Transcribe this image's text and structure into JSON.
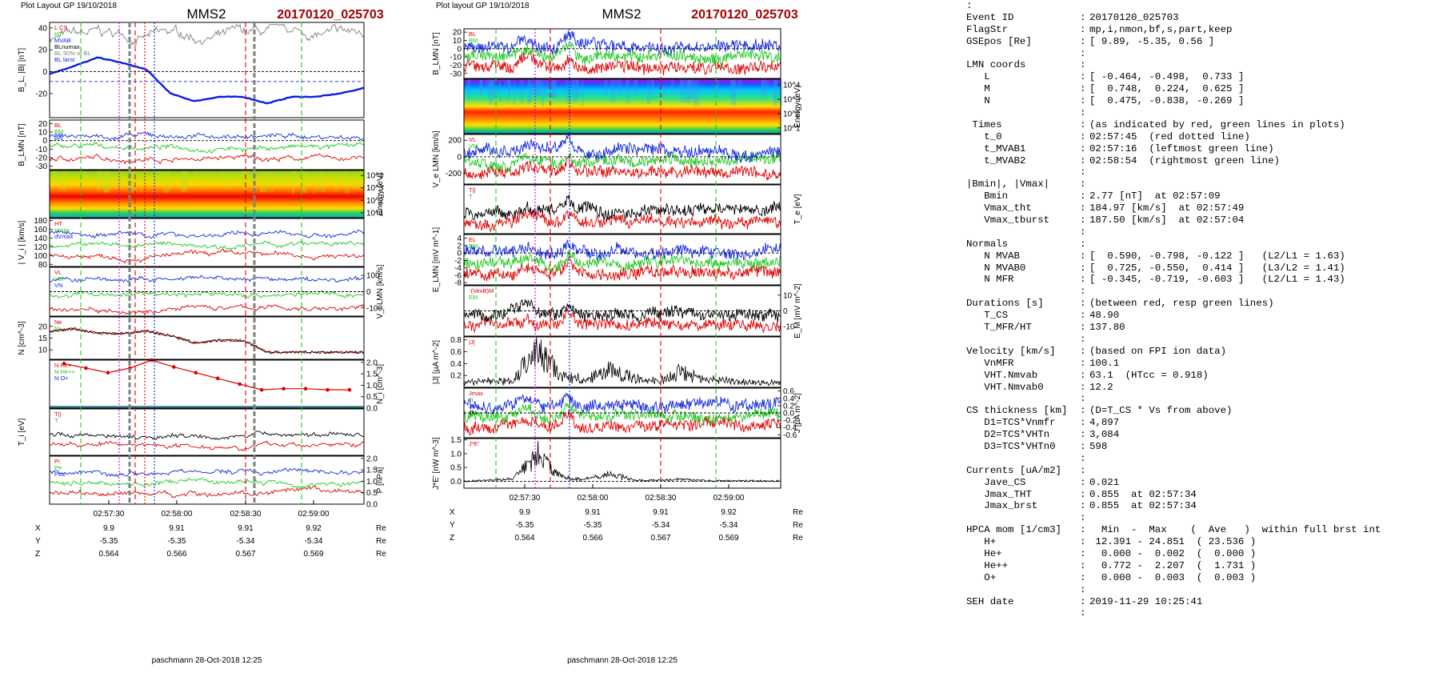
{
  "figures": [
    {
      "header": "Plot Layout GP 19/10/2018",
      "title": "MMS2",
      "event": "20170120_025703",
      "footer": "paschmann 28-Oct-2018 12:25",
      "time_ticks": [
        "02:57:30",
        "02:58:00",
        "02:58:30",
        "02:59:00"
      ],
      "position_rows": [
        {
          "label": "X",
          "values": [
            "9.9",
            "9.91",
            "9.91",
            "9.92"
          ],
          "unit": "Re"
        },
        {
          "label": "Y",
          "values": [
            "-5.35",
            "-5.35",
            "-5.34",
            "-5.34"
          ],
          "unit": "Re"
        },
        {
          "label": "Z",
          "values": [
            "0.564",
            "0.566",
            "0.567",
            "0.569"
          ],
          "unit": "Re"
        }
      ],
      "panels": [
        {
          "ylabel": "B_L, |B| [nT]",
          "side": "left",
          "ticks": [
            [
              "-20",
              -20
            ],
            [
              "0",
              0
            ],
            [
              "20",
              20
            ],
            [
              "40",
              40
            ]
          ],
          "ylim": [
            -42,
            45
          ],
          "legend": [
            "L CS",
            "HT",
            "MVAB",
            "BLnumax",
            "BL 50% of BL",
            "BL larst"
          ]
        },
        {
          "ylabel": "B_LMN [nT]",
          "side": "left",
          "ticks": [
            [
              "-30",
              -30
            ],
            [
              "-20",
              -20
            ],
            [
              "-10",
              -10
            ],
            [
              "0",
              0
            ],
            [
              "10",
              10
            ],
            [
              "20",
              20
            ]
          ],
          "ylim": [
            -34,
            24
          ],
          "legend": [
            "BL",
            "BM",
            "BN"
          ]
        },
        {
          "ylabel": "Energy (eV)",
          "side": "right",
          "spectrogram": true,
          "ticks": [
            [
              "10^4",
              4
            ],
            [
              "10^3",
              3
            ],
            [
              "10^2",
              2
            ],
            [
              "10^1",
              1
            ]
          ],
          "ylim": [
            0.6,
            4.4
          ]
        },
        {
          "ylabel": "| V_i | [km/s]",
          "side": "left",
          "ticks": [
            [
              "80",
              80
            ],
            [
              "100",
              100
            ],
            [
              "120",
              120
            ],
            [
              "140",
              140
            ],
            [
              "160",
              160
            ],
            [
              "180",
              180
            ]
          ],
          "ylim": [
            75,
            185
          ],
          "legend": [
            "HT",
            "Vmax",
            "dVmax"
          ]
        },
        {
          "ylabel": "V_i LMN [km/s]",
          "side": "right",
          "ticks": [
            [
              "-100",
              -100
            ],
            [
              "0",
              0
            ],
            [
              "100",
              100
            ]
          ],
          "ylim": [
            -150,
            150
          ],
          "legend": [
            "VL",
            "VM",
            "VN"
          ]
        },
        {
          "ylabel": "N [cm^-3]",
          "side": "left",
          "ticks": [
            [
              "10",
              10
            ],
            [
              "15",
              15
            ],
            [
              "20",
              20
            ]
          ],
          "ylim": [
            6,
            24
          ],
          "legend": [
            "Ne",
            "Ni"
          ]
        },
        {
          "ylabel": "N_i [cm^-3]",
          "side": "right",
          "ticks": [
            [
              "0.0",
              0
            ],
            [
              "0.5",
              0.5
            ],
            [
              "1.0",
              1
            ],
            [
              "1.5",
              1.5
            ],
            [
              "2.0",
              2
            ]
          ],
          "ylim": [
            0,
            2.1
          ],
          "legend": [
            "N He+",
            "N He++",
            "N O+"
          ]
        },
        {
          "ylabel": "T_i [eV]",
          "side": "left",
          "ticks": [],
          "ylim": [
            0,
            1
          ],
          "legend": [
            "T||",
            "T"
          ]
        },
        {
          "ylabel": "P [nPa]",
          "side": "right",
          "ticks": [
            [
              "0.0",
              0
            ],
            [
              "0.5",
              0.5
            ],
            [
              "1.0",
              1
            ],
            [
              "1.5",
              1.5
            ],
            [
              "2.0",
              2
            ]
          ],
          "ylim": [
            0,
            2.1
          ],
          "legend": [
            "Pi",
            "Pe",
            "Ptot"
          ]
        }
      ]
    },
    {
      "header": "Plot layout GP 19/10/2018",
      "title": "MMS2",
      "event": "20170120_025703",
      "footer": "paschmann 28-Oct-2018 12:25",
      "time_ticks": [
        "02:57:30",
        "02:58:00",
        "02:58:30",
        "02:59:00"
      ],
      "position_rows": [
        {
          "label": "X",
          "values": [
            "9.9",
            "9.91",
            "9.91",
            "9.92"
          ],
          "unit": "Re"
        },
        {
          "label": "Y",
          "values": [
            "-5.35",
            "-5.35",
            "-5.34",
            "-5.34"
          ],
          "unit": "Re"
        },
        {
          "label": "Z",
          "values": [
            "0.564",
            "0.566",
            "0.567",
            "0.569"
          ],
          "unit": "Re"
        }
      ],
      "panels": [
        {
          "ylabel": "B_LMN [nT]",
          "side": "left",
          "ticks": [
            [
              "-30",
              -30
            ],
            [
              "-20",
              -20
            ],
            [
              "-10",
              -10
            ],
            [
              "0",
              0
            ],
            [
              "10",
              10
            ],
            [
              "20",
              20
            ]
          ],
          "ylim": [
            -36,
            24
          ],
          "legend": [
            "BL",
            "BM",
            "BN"
          ]
        },
        {
          "ylabel": "Energy (eV)",
          "side": "right",
          "spectrogram": true,
          "ticks": [
            [
              "10^4",
              4
            ],
            [
              "10^3",
              3
            ],
            [
              "10^2",
              2
            ],
            [
              "10^1",
              1
            ]
          ],
          "ylim": [
            0.6,
            4.4
          ]
        },
        {
          "ylabel": "V_e LMN [km/s]",
          "side": "left",
          "ticks": [
            [
              "-200",
              -200
            ],
            [
              "0",
              0
            ],
            [
              "200",
              200
            ]
          ],
          "ylim": [
            -330,
            270
          ],
          "legend": [
            "VL",
            "VM",
            "VN"
          ]
        },
        {
          "ylabel": "T_e [eV]",
          "side": "right",
          "ticks": [],
          "ylim": [
            0,
            1
          ],
          "legend": [
            "T||",
            "T"
          ]
        },
        {
          "ylabel": "E_LMN [mV m^-1]",
          "side": "left",
          "ticks": [
            [
              "-8",
              -8
            ],
            [
              "-6",
              -6
            ],
            [
              "-4",
              -4
            ],
            [
              "-2",
              -2
            ],
            [
              "0",
              0
            ],
            [
              "2",
              2
            ],
            [
              "4",
              4
            ]
          ],
          "ylim": [
            -8.6,
            5
          ],
          "legend": [
            "EL",
            "EM",
            "EN"
          ]
        },
        {
          "ylabel": "E_M [mV m^-2]",
          "side": "right",
          "ticks": [
            [
              "-10",
              -10
            ],
            [
              "0",
              0
            ],
            [
              "10",
              10
            ]
          ],
          "ylim": [
            -16,
            16
          ],
          "legend": [
            "-(VexB)M",
            "EM"
          ]
        },
        {
          "ylabel": "|J| [µA m^-2]",
          "side": "left",
          "ticks": [
            [
              "0.2",
              0.2
            ],
            [
              "0.4",
              0.4
            ],
            [
              "0.6",
              0.6
            ],
            [
              "0.8",
              0.8
            ]
          ],
          "ylim": [
            0,
            0.85
          ],
          "legend": [
            "|J|"
          ]
        },
        {
          "ylabel": "J [µA m^-2]",
          "side": "right",
          "ticks": [
            [
              "-0.6",
              -0.6
            ],
            [
              "-0.4",
              -0.4
            ],
            [
              "-0.2",
              -0.2
            ],
            [
              "0.0",
              0
            ],
            [
              "0.2",
              0.2
            ],
            [
              "0.4",
              0.4
            ],
            [
              "0.6",
              0.6
            ]
          ],
          "ylim": [
            -0.68,
            0.68
          ],
          "legend": [
            "Jmax",
            "JL",
            "JM",
            "JN"
          ]
        },
        {
          "ylabel": "J*E' [nW m^-3]",
          "side": "left",
          "ticks": [
            [
              "0.0",
              0
            ],
            [
              "0.5",
              0.5
            ],
            [
              "1.0",
              1
            ],
            [
              "1.5",
              1.5
            ]
          ],
          "ylim": [
            -0.25,
            1.55
          ],
          "legend": [
            "J*E'"
          ]
        }
      ]
    }
  ],
  "info_panel": {
    "lines": [
      {
        "k": ":",
        "c": "",
        "v": ""
      },
      {
        "k": "Event ID",
        "c": ":",
        "v": "20170120_025703"
      },
      {
        "k": "FlagStr",
        "c": ":",
        "v": "mp,i,nmon,bf,s,part,keep"
      },
      {
        "k": "GSEpos [Re]",
        "c": ":",
        "v": "[ 9.89, -5.35, 0.56 ]"
      },
      {
        "k": "",
        "c": ":",
        "v": ""
      },
      {
        "k": "LMN coords",
        "c": ":",
        "v": ""
      },
      {
        "k": "   L",
        "c": ":",
        "v": "[ -0.464, -0.498,  0.733 ]"
      },
      {
        "k": "   M",
        "c": ":",
        "v": "[  0.748,  0.224,  0.625 ]"
      },
      {
        "k": "   N",
        "c": ":",
        "v": "[  0.475, -0.838, -0.269 ]"
      },
      {
        "k": "",
        "c": ":",
        "v": ""
      },
      {
        "k": " Times",
        "c": ":",
        "v": "(as indicated by red, green lines in plots)"
      },
      {
        "k": "   t_0",
        "c": ":",
        "v": "02:57:45  (red dotted line)"
      },
      {
        "k": "   t_MVAB1",
        "c": ":",
        "v": "02:57:16  (leftmost green line)"
      },
      {
        "k": "   t_MVAB2",
        "c": ":",
        "v": "02:58:54  (rightmost green line)"
      },
      {
        "k": "",
        "c": ":",
        "v": ""
      },
      {
        "k": "|Bmin|, |Vmax|",
        "c": ":",
        "v": ""
      },
      {
        "k": "   Bmin",
        "c": ":",
        "v": "2.77 [nT]  at 02:57:09"
      },
      {
        "k": "   Vmax_tht",
        "c": ":",
        "v": "184.97 [km/s]  at 02:57:49"
      },
      {
        "k": "   Vmax_tburst",
        "c": ":",
        "v": "187.50 [km/s]  at 02:57:04"
      },
      {
        "k": "",
        "c": ":",
        "v": ""
      },
      {
        "k": "Normals",
        "c": ":",
        "v": ""
      },
      {
        "k": "   N MVAB",
        "c": ":",
        "v": "[  0.590, -0.798, -0.122 ]   (L2/L1 = 1.63)"
      },
      {
        "k": "   N MVAB0",
        "c": ":",
        "v": "[  0.725, -0.550,  0.414 ]   (L3/L2 = 1.41)"
      },
      {
        "k": "   N MFR",
        "c": ":",
        "v": "[ -0.345, -0.719, -0.603 ]   (L2/L1 = 1.43)"
      },
      {
        "k": "",
        "c": ":",
        "v": ""
      },
      {
        "k": "Durations [s]",
        "c": ":",
        "v": "(between red, resp green lines)"
      },
      {
        "k": "   T_CS",
        "c": ":",
        "v": "48.90"
      },
      {
        "k": "   T_MFR/HT",
        "c": ":",
        "v": "137.80"
      },
      {
        "k": "",
        "c": ":",
        "v": ""
      },
      {
        "k": "Velocity [km/s]",
        "c": ":",
        "v": "(based on FPI ion data)"
      },
      {
        "k": "   VnMFR",
        "c": ":",
        "v": "100.1"
      },
      {
        "k": "   VHT.Nmvab",
        "c": ":",
        "v": "63.1  (HTcc = 0.918)"
      },
      {
        "k": "   VHT.Nmvab0",
        "c": ":",
        "v": "12.2"
      },
      {
        "k": "",
        "c": ":",
        "v": ""
      },
      {
        "k": "CS thickness [km]",
        "c": ":",
        "v": "(D=T_CS * Vs from above)"
      },
      {
        "k": "   D1=TCS*Vnmfr",
        "c": ":",
        "v": "4,897"
      },
      {
        "k": "   D2=TCS*VHTn",
        "c": ":",
        "v": "3,084"
      },
      {
        "k": "   D3=TCS*VHTn0",
        "c": ":",
        "v": "598"
      },
      {
        "k": "",
        "c": ":",
        "v": ""
      },
      {
        "k": "Currents [uA/m2]",
        "c": ":",
        "v": ""
      },
      {
        "k": "   Jave_CS",
        "c": ":",
        "v": "0.021"
      },
      {
        "k": "   Jmax_THT",
        "c": ":",
        "v": "0.855  at 02:57:34"
      },
      {
        "k": "   Jmax_brst",
        "c": ":",
        "v": "0.855  at 02:57:34"
      },
      {
        "k": "",
        "c": ":",
        "v": ""
      },
      {
        "k": "HPCA mom [1/cm3]",
        "c": ":",
        "v": "  Min  -  Max    (  Ave   )  within full brst int"
      },
      {
        "k": "   H+",
        "c": ":",
        "v": " 12.391 - 24.851  ( 23.536 )"
      },
      {
        "k": "   He+",
        "c": ":",
        "v": "  0.000 -  0.002  (  0.000 )"
      },
      {
        "k": "   He++",
        "c": ":",
        "v": "  0.772 -  2.207  (  1.731 )"
      },
      {
        "k": "   O+",
        "c": ":",
        "v": "  0.000 -  0.003  (  0.003 )"
      },
      {
        "k": "",
        "c": ":",
        "v": ""
      },
      {
        "k": "SEH date",
        "c": ":",
        "v": "2019-11-29 10:25:41"
      },
      {
        "k": "",
        "c": ":",
        "v": ""
      }
    ]
  },
  "chart_data": [
    {
      "type": "line",
      "title": "MMS2",
      "subtitle": "20170120_025703",
      "x_ticks": [
        "02:57:30",
        "02:58:00",
        "02:58:30",
        "02:59:00"
      ],
      "series": [
        {
          "name": "BL",
          "values": [
            -2,
            5,
            13,
            8,
            2,
            -20,
            -27,
            -23,
            -23,
            -29,
            -23,
            -23,
            -20,
            -15
          ]
        },
        {
          "name": "N",
          "values": [
            18,
            19,
            17,
            17,
            18,
            16,
            13,
            14,
            14,
            9,
            9,
            9,
            9,
            9
          ]
        },
        {
          "name": "N He++",
          "values": [
            1.95,
            1.75,
            1.55,
            1.75,
            2.1,
            1.8,
            1.55,
            1.3,
            1.05,
            0.8,
            0.85,
            0.85,
            0.8,
            0.8
          ]
        }
      ]
    },
    {
      "type": "line",
      "title": "MMS2",
      "subtitle": "20170120_025703",
      "x_ticks": [
        "02:57:30",
        "02:58:00",
        "02:58:30",
        "02:59:00"
      ],
      "series": [
        {
          "name": "|J|",
          "values": [
            0.05,
            0.08,
            0.1,
            0.85,
            0.2,
            0.12,
            0.35,
            0.15,
            0.1,
            0.3,
            0.12,
            0.08,
            0.06,
            0.05
          ]
        },
        {
          "name": "J*E'",
          "values": [
            0,
            0.05,
            0.1,
            1.25,
            0.2,
            0.1,
            0.35,
            0.05,
            0.05,
            0.1,
            0.03,
            0.02,
            0.02,
            0.01
          ]
        }
      ]
    }
  ]
}
